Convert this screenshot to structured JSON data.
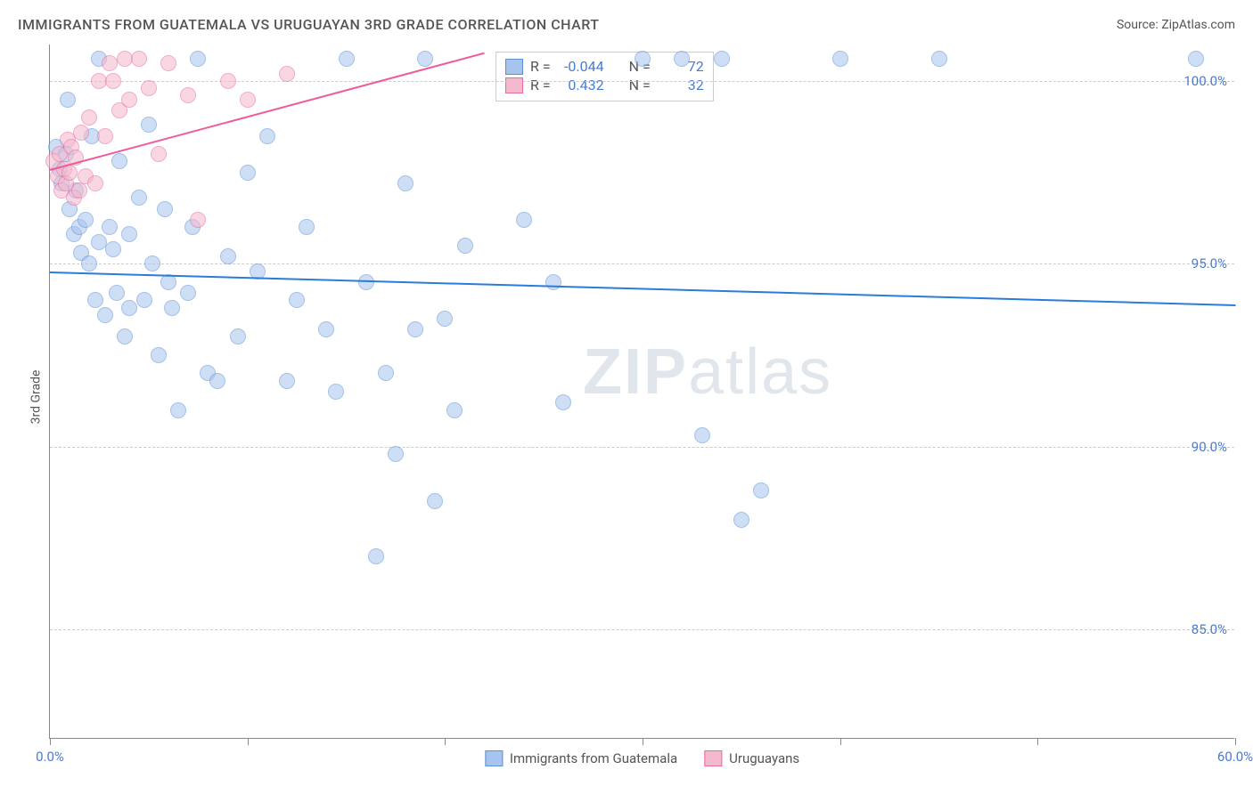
{
  "header": {
    "title": "IMMIGRANTS FROM GUATEMALA VS URUGUAYAN 3RD GRADE CORRELATION CHART",
    "source": "Source: ZipAtlas.com"
  },
  "yaxis": {
    "label": "3rd Grade"
  },
  "chart": {
    "type": "scatter",
    "xlim": [
      0,
      60
    ],
    "ylim": [
      82,
      101
    ],
    "background_color": "#ffffff",
    "grid_color": "#cccccc",
    "xtick_positions": [
      0,
      10,
      20,
      30,
      40,
      50,
      60
    ],
    "xtick_labels": {
      "0": "0.0%",
      "60": "60.0%"
    },
    "ytick_values": [
      85,
      90,
      95,
      100
    ],
    "ytick_labels": [
      "85.0%",
      "90.0%",
      "95.0%",
      "100.0%"
    ],
    "marker_radius": 9,
    "marker_opacity": 0.55,
    "series": [
      {
        "name": "Immigrants from Guatemala",
        "fill": "#a7c4ec",
        "stroke": "#5b8fd6",
        "trend_color": "#2b7bd9",
        "R": "-0.044",
        "N": "72",
        "trend": {
          "x1": 0,
          "y1": 94.8,
          "x2": 60,
          "y2": 93.9
        },
        "points": [
          [
            0.3,
            98.2
          ],
          [
            0.5,
            97.6
          ],
          [
            0.6,
            97.2
          ],
          [
            0.8,
            98.0
          ],
          [
            0.9,
            99.5
          ],
          [
            1.0,
            96.5
          ],
          [
            1.2,
            95.8
          ],
          [
            1.3,
            97.0
          ],
          [
            1.5,
            96.0
          ],
          [
            1.6,
            95.3
          ],
          [
            1.8,
            96.2
          ],
          [
            2.0,
            95.0
          ],
          [
            2.1,
            98.5
          ],
          [
            2.3,
            94.0
          ],
          [
            2.5,
            95.6
          ],
          [
            2.8,
            93.6
          ],
          [
            3.0,
            96.0
          ],
          [
            3.2,
            95.4
          ],
          [
            3.4,
            94.2
          ],
          [
            3.5,
            97.8
          ],
          [
            3.8,
            93.0
          ],
          [
            4.0,
            95.8
          ],
          [
            4.0,
            93.8
          ],
          [
            4.5,
            96.8
          ],
          [
            4.8,
            94.0
          ],
          [
            5.0,
            98.8
          ],
          [
            5.2,
            95.0
          ],
          [
            5.5,
            92.5
          ],
          [
            5.8,
            96.5
          ],
          [
            6.0,
            94.5
          ],
          [
            6.2,
            93.8
          ],
          [
            6.5,
            91.0
          ],
          [
            7.0,
            94.2
          ],
          [
            7.2,
            96.0
          ],
          [
            7.5,
            100.6
          ],
          [
            2.5,
            100.6
          ],
          [
            8.0,
            92.0
          ],
          [
            8.5,
            91.8
          ],
          [
            9.0,
            95.2
          ],
          [
            9.5,
            93.0
          ],
          [
            10.0,
            97.5
          ],
          [
            10.5,
            94.8
          ],
          [
            11.0,
            98.5
          ],
          [
            12.0,
            91.8
          ],
          [
            12.5,
            94.0
          ],
          [
            13.0,
            96.0
          ],
          [
            14.0,
            93.2
          ],
          [
            14.5,
            91.5
          ],
          [
            15.0,
            100.6
          ],
          [
            16.0,
            94.5
          ],
          [
            16.5,
            87.0
          ],
          [
            17.0,
            92.0
          ],
          [
            17.5,
            89.8
          ],
          [
            18.0,
            97.2
          ],
          [
            18.5,
            93.2
          ],
          [
            19.0,
            100.6
          ],
          [
            19.5,
            88.5
          ],
          [
            20.0,
            93.5
          ],
          [
            20.5,
            91.0
          ],
          [
            21.0,
            95.5
          ],
          [
            24.0,
            96.2
          ],
          [
            25.5,
            94.5
          ],
          [
            26.0,
            91.2
          ],
          [
            30.0,
            100.6
          ],
          [
            32.0,
            100.6
          ],
          [
            33.0,
            90.3
          ],
          [
            35.0,
            88.0
          ],
          [
            36.0,
            88.8
          ],
          [
            34.0,
            100.6
          ],
          [
            40.0,
            100.6
          ],
          [
            45.0,
            100.6
          ],
          [
            58.0,
            100.6
          ]
        ]
      },
      {
        "name": "Uruguayans",
        "fill": "#f4b8cd",
        "stroke": "#e76aa0",
        "trend_color": "#ef5b9a",
        "R": "0.432",
        "N": "32",
        "trend": {
          "x1": 0,
          "y1": 97.6,
          "x2": 22,
          "y2": 100.8
        },
        "points": [
          [
            0.2,
            97.8
          ],
          [
            0.4,
            97.4
          ],
          [
            0.5,
            98.0
          ],
          [
            0.6,
            97.0
          ],
          [
            0.7,
            97.6
          ],
          [
            0.8,
            97.2
          ],
          [
            0.9,
            98.4
          ],
          [
            1.0,
            97.5
          ],
          [
            1.1,
            98.2
          ],
          [
            1.2,
            96.8
          ],
          [
            1.3,
            97.9
          ],
          [
            1.5,
            97.0
          ],
          [
            1.6,
            98.6
          ],
          [
            1.8,
            97.4
          ],
          [
            2.0,
            99.0
          ],
          [
            2.3,
            97.2
          ],
          [
            2.5,
            100.0
          ],
          [
            2.8,
            98.5
          ],
          [
            3.0,
            100.5
          ],
          [
            3.2,
            100.0
          ],
          [
            3.5,
            99.2
          ],
          [
            3.8,
            100.6
          ],
          [
            4.0,
            99.5
          ],
          [
            4.5,
            100.6
          ],
          [
            5.0,
            99.8
          ],
          [
            5.5,
            98.0
          ],
          [
            6.0,
            100.5
          ],
          [
            7.0,
            99.6
          ],
          [
            7.5,
            96.2
          ],
          [
            9.0,
            100.0
          ],
          [
            10.0,
            99.5
          ],
          [
            12.0,
            100.2
          ]
        ]
      }
    ]
  },
  "stats_box": {
    "r_label": "R =",
    "n_label": "N ="
  },
  "legend": {
    "series1": "Immigrants from Guatemala",
    "series2": "Uruguayans"
  },
  "watermark": {
    "part1": "ZIP",
    "part2": "atlas"
  }
}
